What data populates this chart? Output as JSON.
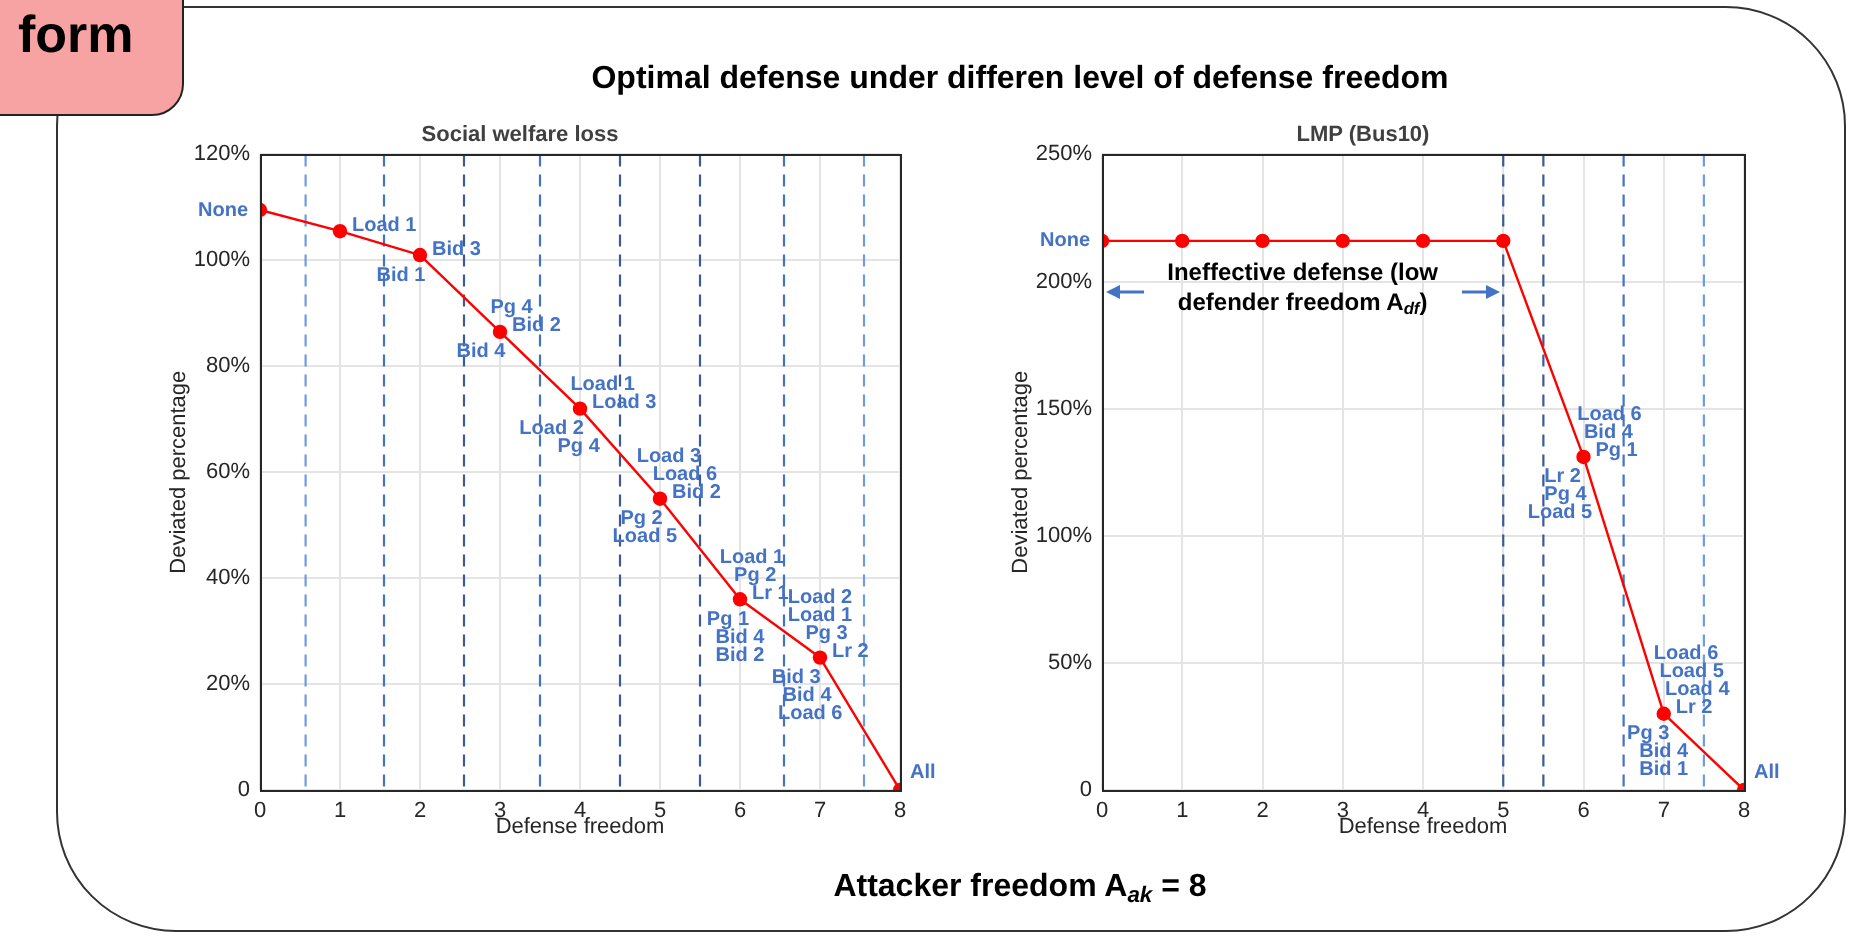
{
  "chart_data": [
    {
      "type": "other",
      "title": "form",
      "subtitle": "Optimal defense under differen level of defense freedom",
      "annotations": [
        "Attacker freedom A$_{ak}$ = 8"
      ]
    },
    {
      "type": "line",
      "title": "Social welfare loss",
      "xlabel": "Defense freedom",
      "ylabel": "Deviated percentage",
      "x": [
        0,
        1,
        2,
        3,
        4,
        5,
        6,
        7,
        8
      ],
      "values": [
        109.5,
        105.5,
        101,
        86.5,
        72,
        55,
        36,
        25,
        0
      ],
      "color": "#ff0000",
      "marker": "circle",
      "xlim": [
        0,
        8
      ],
      "xticks": [
        0,
        1,
        2,
        3,
        4,
        5,
        6,
        7,
        8
      ],
      "ylim": [
        0,
        120
      ],
      "yticks": [
        0,
        {
          "value": 20,
          "label": "20%"
        },
        {
          "value": 40,
          "label": "40%"
        },
        {
          "value": 60,
          "label": "60%"
        },
        {
          "value": 80,
          "label": "80%"
        },
        {
          "value": 100,
          "label": "100%"
        },
        {
          "value": 120,
          "label": "120%"
        }
      ],
      "grid": true,
      "ref_lines": [
        {
          "axis": "x",
          "value": 0.57,
          "color": "#6f9be0",
          "line_style": "dashed"
        },
        {
          "axis": "x",
          "value": 1.55,
          "color": "#4472c4",
          "line_style": "dashed"
        },
        {
          "axis": "x",
          "value": 2.55,
          "color": "#3c5a96",
          "line_style": "dashed"
        },
        {
          "axis": "x",
          "value": 3.5,
          "color": "#4472c4",
          "line_style": "dashed"
        },
        {
          "axis": "x",
          "value": 4.5,
          "color": "#3c5a96",
          "line_style": "dashed"
        },
        {
          "axis": "x",
          "value": 5.5,
          "color": "#3c5a96",
          "line_style": "dashed"
        },
        {
          "axis": "x",
          "value": 6.55,
          "color": "#4472c4",
          "line_style": "dashed"
        },
        {
          "axis": "x",
          "value": 7.55,
          "color": "#6f9be0",
          "line_style": "dashed"
        }
      ],
      "annotations": [
        {
          "text": "None",
          "x": 0,
          "y": 109.5
        },
        {
          "text": "Load 1",
          "x": 1,
          "y": 105.5
        },
        {
          "text": "Bid 3",
          "x": 2,
          "y": 101
        },
        {
          "text": "Bid 1",
          "x": 2,
          "y": 101
        },
        {
          "text": "Pg 4",
          "x": 3,
          "y": 86.5
        },
        {
          "text": "Bid 2",
          "x": 3,
          "y": 86.5
        },
        {
          "text": "Bid 4",
          "x": 3,
          "y": 86.5
        },
        {
          "text": "Load 1",
          "x": 4,
          "y": 72
        },
        {
          "text": "Load 3",
          "x": 4,
          "y": 72
        },
        {
          "text": "Load 2",
          "x": 4,
          "y": 72
        },
        {
          "text": "Pg 4",
          "x": 4,
          "y": 72
        },
        {
          "text": "Load 3",
          "x": 5,
          "y": 55
        },
        {
          "text": "Load 6",
          "x": 5,
          "y": 55
        },
        {
          "text": "Bid 2",
          "x": 5,
          "y": 55
        },
        {
          "text": "Pg 2",
          "x": 5,
          "y": 55
        },
        {
          "text": "Load 5",
          "x": 5,
          "y": 55
        },
        {
          "text": "Load 1",
          "x": 6,
          "y": 36
        },
        {
          "text": "Pg 2",
          "x": 6,
          "y": 36
        },
        {
          "text": "Lr 1",
          "x": 6,
          "y": 36
        },
        {
          "text": "Pg 1",
          "x": 6,
          "y": 36
        },
        {
          "text": "Bid 4",
          "x": 6,
          "y": 36
        },
        {
          "text": "Bid 2",
          "x": 6,
          "y": 36
        },
        {
          "text": "Load 2",
          "x": 7,
          "y": 25
        },
        {
          "text": "Load 1",
          "x": 7,
          "y": 25
        },
        {
          "text": "Pg 3",
          "x": 7,
          "y": 25
        },
        {
          "text": "Lr 2",
          "x": 7,
          "y": 25
        },
        {
          "text": "Bid 3",
          "x": 7,
          "y": 25
        },
        {
          "text": "Bid 4",
          "x": 7,
          "y": 25
        },
        {
          "text": "Load 6",
          "x": 7,
          "y": 25
        },
        {
          "text": "All",
          "x": 8,
          "y": 0
        }
      ]
    },
    {
      "type": "line",
      "title": "LMP (Bus10)",
      "xlabel": "Defense freedom",
      "ylabel": "Deviated percentage",
      "x": [
        0,
        1,
        2,
        3,
        4,
        5,
        6,
        7,
        8
      ],
      "values": [
        216,
        216,
        216,
        216,
        216,
        216,
        131,
        30,
        0
      ],
      "color": "#ff0000",
      "marker": "circle",
      "xlim": [
        0,
        8
      ],
      "xticks": [
        0,
        1,
        2,
        3,
        4,
        5,
        6,
        7,
        8
      ],
      "ylim": [
        0,
        250
      ],
      "yticks": [
        0,
        {
          "value": 50,
          "label": "50%"
        },
        {
          "value": 100,
          "label": "100%"
        },
        {
          "value": 150,
          "label": "150%"
        },
        {
          "value": 200,
          "label": "200%"
        },
        {
          "value": 250,
          "label": "250%"
        }
      ],
      "grid": true,
      "ref_lines": [
        {
          "axis": "x",
          "value": 5,
          "color": "#3c5a96",
          "line_style": "dashed"
        },
        {
          "axis": "x",
          "value": 5.5,
          "color": "#3c5a96",
          "line_style": "dashed"
        },
        {
          "axis": "x",
          "value": 6.5,
          "color": "#4472c4",
          "line_style": "dashed"
        },
        {
          "axis": "x",
          "value": 7.5,
          "color": "#6f9be0",
          "line_style": "dashed"
        }
      ],
      "annotations": [
        "Ineffective defense (low defender freedom A$_{df}$)",
        {
          "text": "None",
          "x": 0,
          "y": 216
        },
        {
          "text": "Load 6",
          "x": 6,
          "y": 131
        },
        {
          "text": "Bid 4",
          "x": 6,
          "y": 131
        },
        {
          "text": "Pg 1",
          "x": 6,
          "y": 131
        },
        {
          "text": "Lr 2",
          "x": 6,
          "y": 131
        },
        {
          "text": "Pg 4",
          "x": 6,
          "y": 131
        },
        {
          "text": "Load 5",
          "x": 6,
          "y": 131
        },
        {
          "text": "Load 6",
          "x": 7,
          "y": 30
        },
        {
          "text": "Load 5",
          "x": 7,
          "y": 30
        },
        {
          "text": "Load 4",
          "x": 7,
          "y": 30
        },
        {
          "text": "Lr 2",
          "x": 7,
          "y": 30
        },
        {
          "text": "Pg 3",
          "x": 7,
          "y": 30
        },
        {
          "text": "Bid 4",
          "x": 7,
          "y": 30
        },
        {
          "text": "Bid 1",
          "x": 7,
          "y": 30
        },
        {
          "text": "All",
          "x": 8,
          "y": 0
        }
      ]
    }
  ]
}
